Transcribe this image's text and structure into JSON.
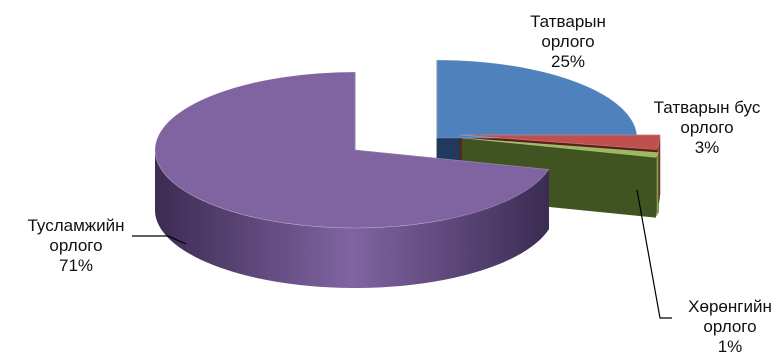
{
  "chart_data": {
    "type": "pie",
    "title": "",
    "slices": [
      {
        "name": "Татварын орлого",
        "value": 25,
        "label": [
          "Татварын",
          "орлого",
          "25%"
        ],
        "color": "#4f81bd",
        "dark": "#1f3a5c"
      },
      {
        "name": "Татварын бус орлого",
        "value": 3,
        "label": [
          "Татварын бус",
          "орлого",
          "3%"
        ],
        "color": "#c0504d",
        "dark": "#5e1f1c"
      },
      {
        "name": "Хөрөнгийн орлого",
        "value": 1,
        "label": [
          "Хөрөнгийн",
          "орлого",
          "1%"
        ],
        "color": "#9bbb59",
        "dark": "#3f5420"
      },
      {
        "name": "Тусламжийн орлого",
        "value": 71,
        "label": [
          "Тусламжийн",
          "орлого",
          "71%"
        ],
        "color": "#8064a2",
        "dark": "#3b2c52"
      }
    ],
    "style": "3d-exploded-pie"
  }
}
